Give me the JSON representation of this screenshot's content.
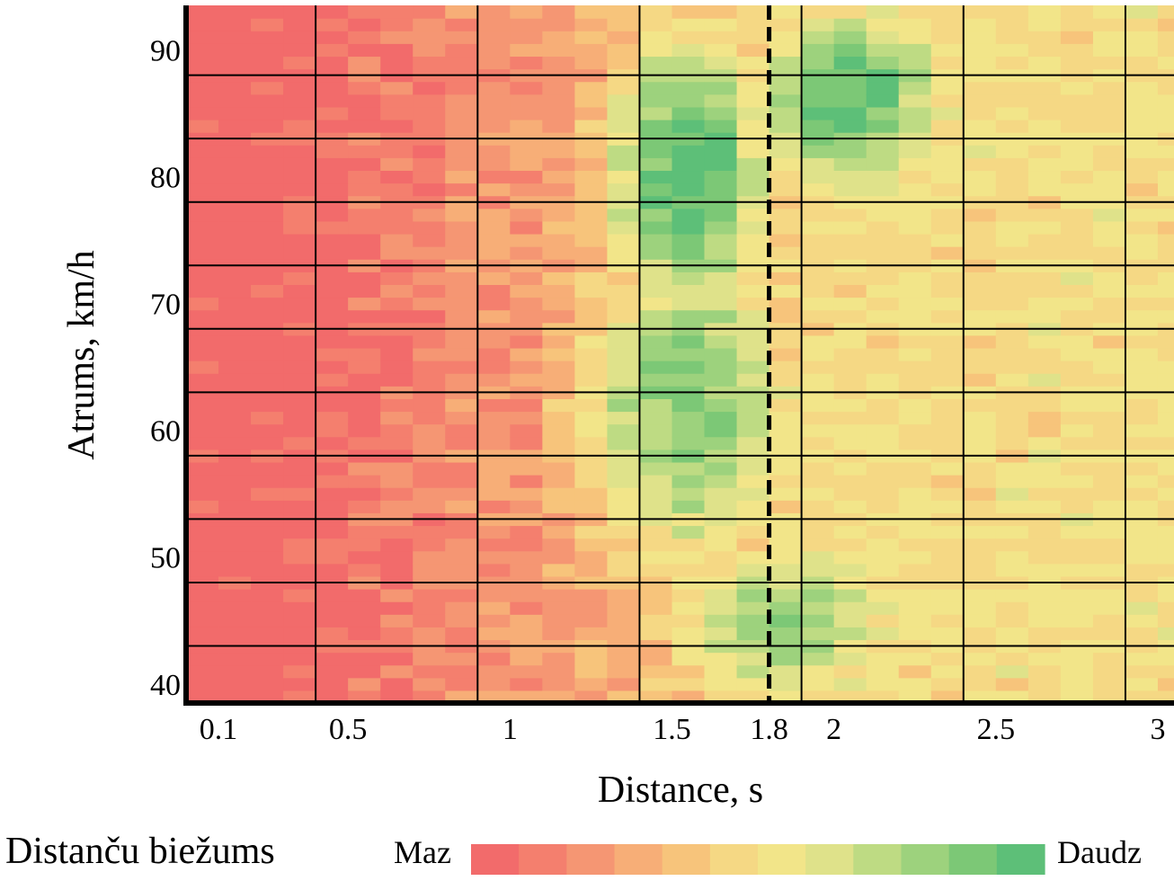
{
  "chart_data": {
    "type": "heatmap",
    "xlabel": "Distance, s",
    "ylabel": "Atrums, km/h",
    "xlim": [
      0.0,
      3.05
    ],
    "ylim": [
      38.5,
      93.5
    ],
    "x_ticks": [
      0.1,
      0.5,
      1,
      1.5,
      1.8,
      2,
      2.5,
      3
    ],
    "x_tick_labels": [
      "0.1",
      "0.5",
      "1",
      "1.5",
      "1.8",
      "2",
      "2.5",
      "3"
    ],
    "y_ticks": [
      40,
      50,
      60,
      70,
      80,
      90
    ],
    "y_tick_labels": [
      "40",
      "50",
      "60",
      "70",
      "80",
      "90"
    ],
    "x_gridlines": [
      0.4,
      0.9,
      1.4,
      1.9,
      2.4,
      2.9
    ],
    "y_gridlines": [
      43,
      48,
      53,
      58,
      63,
      68,
      73,
      78,
      83,
      88
    ],
    "reference_line": {
      "x": 1.8,
      "style": "dashed"
    },
    "x_bin_width": 0.1,
    "y_bin_height": 1,
    "x_bins_start": 0.0,
    "x_bins_count": 31,
    "y_bins_start": 39,
    "y_bins_end": 93,
    "grid": true,
    "colorscale": {
      "title": "Distanču biežums",
      "low_label": "Maz",
      "high_label": "Daudz",
      "colors": [
        "#f26b6b",
        "#f47f6e",
        "#f59673",
        "#f7ae77",
        "#f7c47b",
        "#f5d884",
        "#f2e589",
        "#dfe28a",
        "#bedb83",
        "#9dd27d",
        "#7cc876",
        "#5dbf78"
      ]
    },
    "density_model": {
      "note_free": true,
      "hotspots": [
        {
          "x": 1.55,
          "y": 80,
          "sx": 0.22,
          "sy": 10,
          "w": 1.0
        },
        {
          "x": 2.05,
          "y": 86,
          "sx": 0.28,
          "sy": 7,
          "w": 0.95
        },
        {
          "x": 1.55,
          "y": 62,
          "sx": 0.3,
          "sy": 12,
          "w": 0.85
        },
        {
          "x": 1.85,
          "y": 45,
          "sx": 0.35,
          "sy": 6,
          "w": 0.8
        }
      ]
    }
  }
}
